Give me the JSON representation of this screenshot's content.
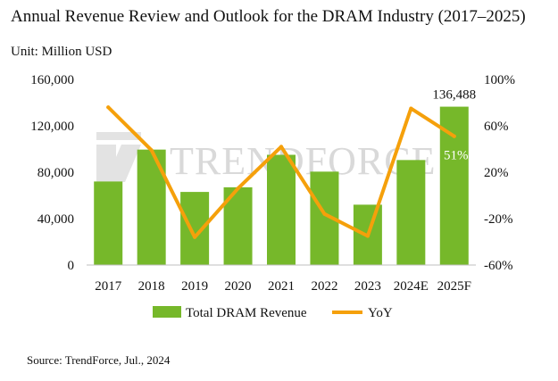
{
  "title": "Annual Revenue Review and Outlook for the DRAM Industry (2017–2025)",
  "unit": "Unit: Million USD",
  "source": "Source: TrendForce, Jul., 2024",
  "watermark": "TRENDFORCE",
  "colors": {
    "bar": "#76b82a",
    "line": "#f5a00b",
    "label_dark": "#111111",
    "label_light": "#ffffff"
  },
  "chart_data": {
    "type": "bar",
    "title": "Annual Revenue Review and Outlook for the DRAM Industry (2017–2025)",
    "categories": [
      "2017",
      "2018",
      "2019",
      "2020",
      "2021",
      "2022",
      "2023",
      "2024E",
      "2025F"
    ],
    "series": [
      {
        "name": "Total DRAM Revenue",
        "type": "bar",
        "axis": "left",
        "values": [
          72000,
          99500,
          63000,
          67000,
          95000,
          80500,
          52000,
          90500,
          136488
        ]
      },
      {
        "name": "YoY",
        "type": "line",
        "axis": "right",
        "values": [
          76,
          39,
          -36,
          6,
          42,
          -16,
          -35,
          75,
          51
        ]
      }
    ],
    "y_left": {
      "min": 0,
      "max": 160000,
      "ticks": [
        0,
        40000,
        80000,
        120000,
        160000
      ],
      "tick_labels": [
        "0",
        "40,000",
        "80,000",
        "120,000",
        "160,000"
      ]
    },
    "y_right": {
      "min": -60,
      "max": 100,
      "ticks": [
        -60,
        -20,
        20,
        60,
        100
      ],
      "tick_labels": [
        "-60%",
        "-20%",
        "20%",
        "60%",
        "100%"
      ]
    },
    "data_labels": [
      {
        "series": 0,
        "index": 8,
        "text": "136,488",
        "placement": "above"
      },
      {
        "series": 1,
        "index": 8,
        "text": "51%",
        "placement": "inside"
      }
    ],
    "legend": {
      "position": "bottom",
      "items": [
        "Total DRAM Revenue",
        "YoY"
      ]
    },
    "grid": false
  }
}
